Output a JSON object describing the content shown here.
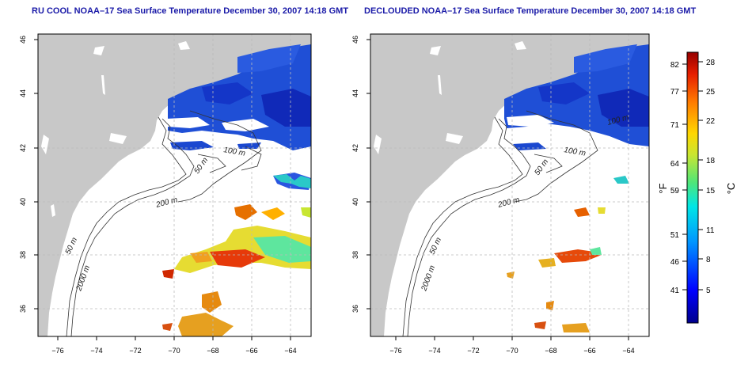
{
  "left_panel": {
    "title": "RU COOL NOAA–17 Sea Surface Temperature December 30, 2007 14:18 GMT",
    "lon_ticks": [
      "−76",
      "−74",
      "−72",
      "−70",
      "−68",
      "−66",
      "−64"
    ],
    "lat_ticks": [
      "36",
      "38",
      "40",
      "42",
      "44",
      "46"
    ],
    "contour_labels": [
      "100 m",
      "50 m",
      "200 m",
      "50 m",
      "2000 m"
    ]
  },
  "right_panel": {
    "title": "DECLOUDED NOAA–17 Sea Surface Temperature December 30, 2007 14:18 GMT",
    "lon_ticks": [
      "−76",
      "−74",
      "−72",
      "−70",
      "−68",
      "−66",
      "−64"
    ],
    "lat_ticks": [
      "36",
      "38",
      "40",
      "42",
      "44",
      "46"
    ],
    "contour_labels": [
      "100 m",
      "100 m",
      "50 m",
      "200 m",
      "50 m",
      "2000 m"
    ]
  },
  "colorbar": {
    "fahrenheit_label": "°F",
    "celsius_label": "°C",
    "fahrenheit_ticks": [
      "82",
      "77",
      "71",
      "64",
      "59",
      "51",
      "46",
      "41"
    ],
    "celsius_ticks": [
      "28",
      "25",
      "22",
      "18",
      "15",
      "11",
      "8",
      "5"
    ]
  },
  "colors": {
    "land": "#c8c8c8",
    "ocean": "#ffffff",
    "title": "#1a1aa8",
    "grid": "#bbbbbb"
  }
}
